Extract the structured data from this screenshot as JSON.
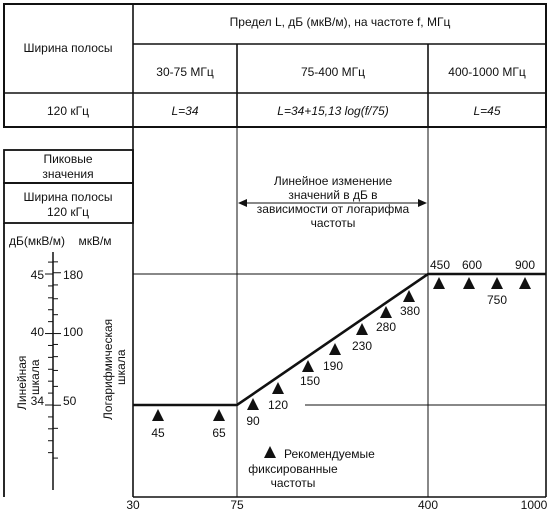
{
  "table": {
    "header_main": "Предел L, дБ (мкВ/м), на частоте f, МГц",
    "header_left": "Ширина полосы",
    "bands": [
      "30-75 МГц",
      "75-400 МГц",
      "400-1000 МГц"
    ],
    "bandwidth_value": "120 кГц",
    "limits": [
      "L=34",
      "L=34+15,13 log(f/75)",
      "L=45"
    ]
  },
  "diagram": {
    "legend_peak_line1": "Пиковые",
    "legend_peak_line2": "значения",
    "legend_bw_line1": "Ширина полосы",
    "legend_bw_line2": "120 кГц",
    "scale_db_label": "дБ(мкВ/м)",
    "scale_uv_label": "мкВ/м",
    "linear_scale_line1": "Линейная",
    "linear_scale_line2": "шкала",
    "log_scale_line1": "Логарифмическая",
    "log_scale_line2": "шкала",
    "db_ticks": [
      "45",
      "40",
      "34"
    ],
    "uv_ticks": [
      "180",
      "100",
      "50"
    ],
    "note_line1": "Линейное  изменение",
    "note_line2": "значений в дБ в",
    "note_line3": "зависимости от логарифма",
    "note_line4": "частоты",
    "legend_rec_line1": "Рекомендуемые",
    "legend_rec_line2": "фиксированные",
    "legend_rec_line3": "частоты",
    "x_ticks": [
      "30",
      "75",
      "400",
      "1000"
    ],
    "freq_labels": [
      "45",
      "65",
      "90",
      "120",
      "150",
      "190",
      "230",
      "280",
      "380",
      "450",
      "600",
      "750",
      "900"
    ]
  }
}
